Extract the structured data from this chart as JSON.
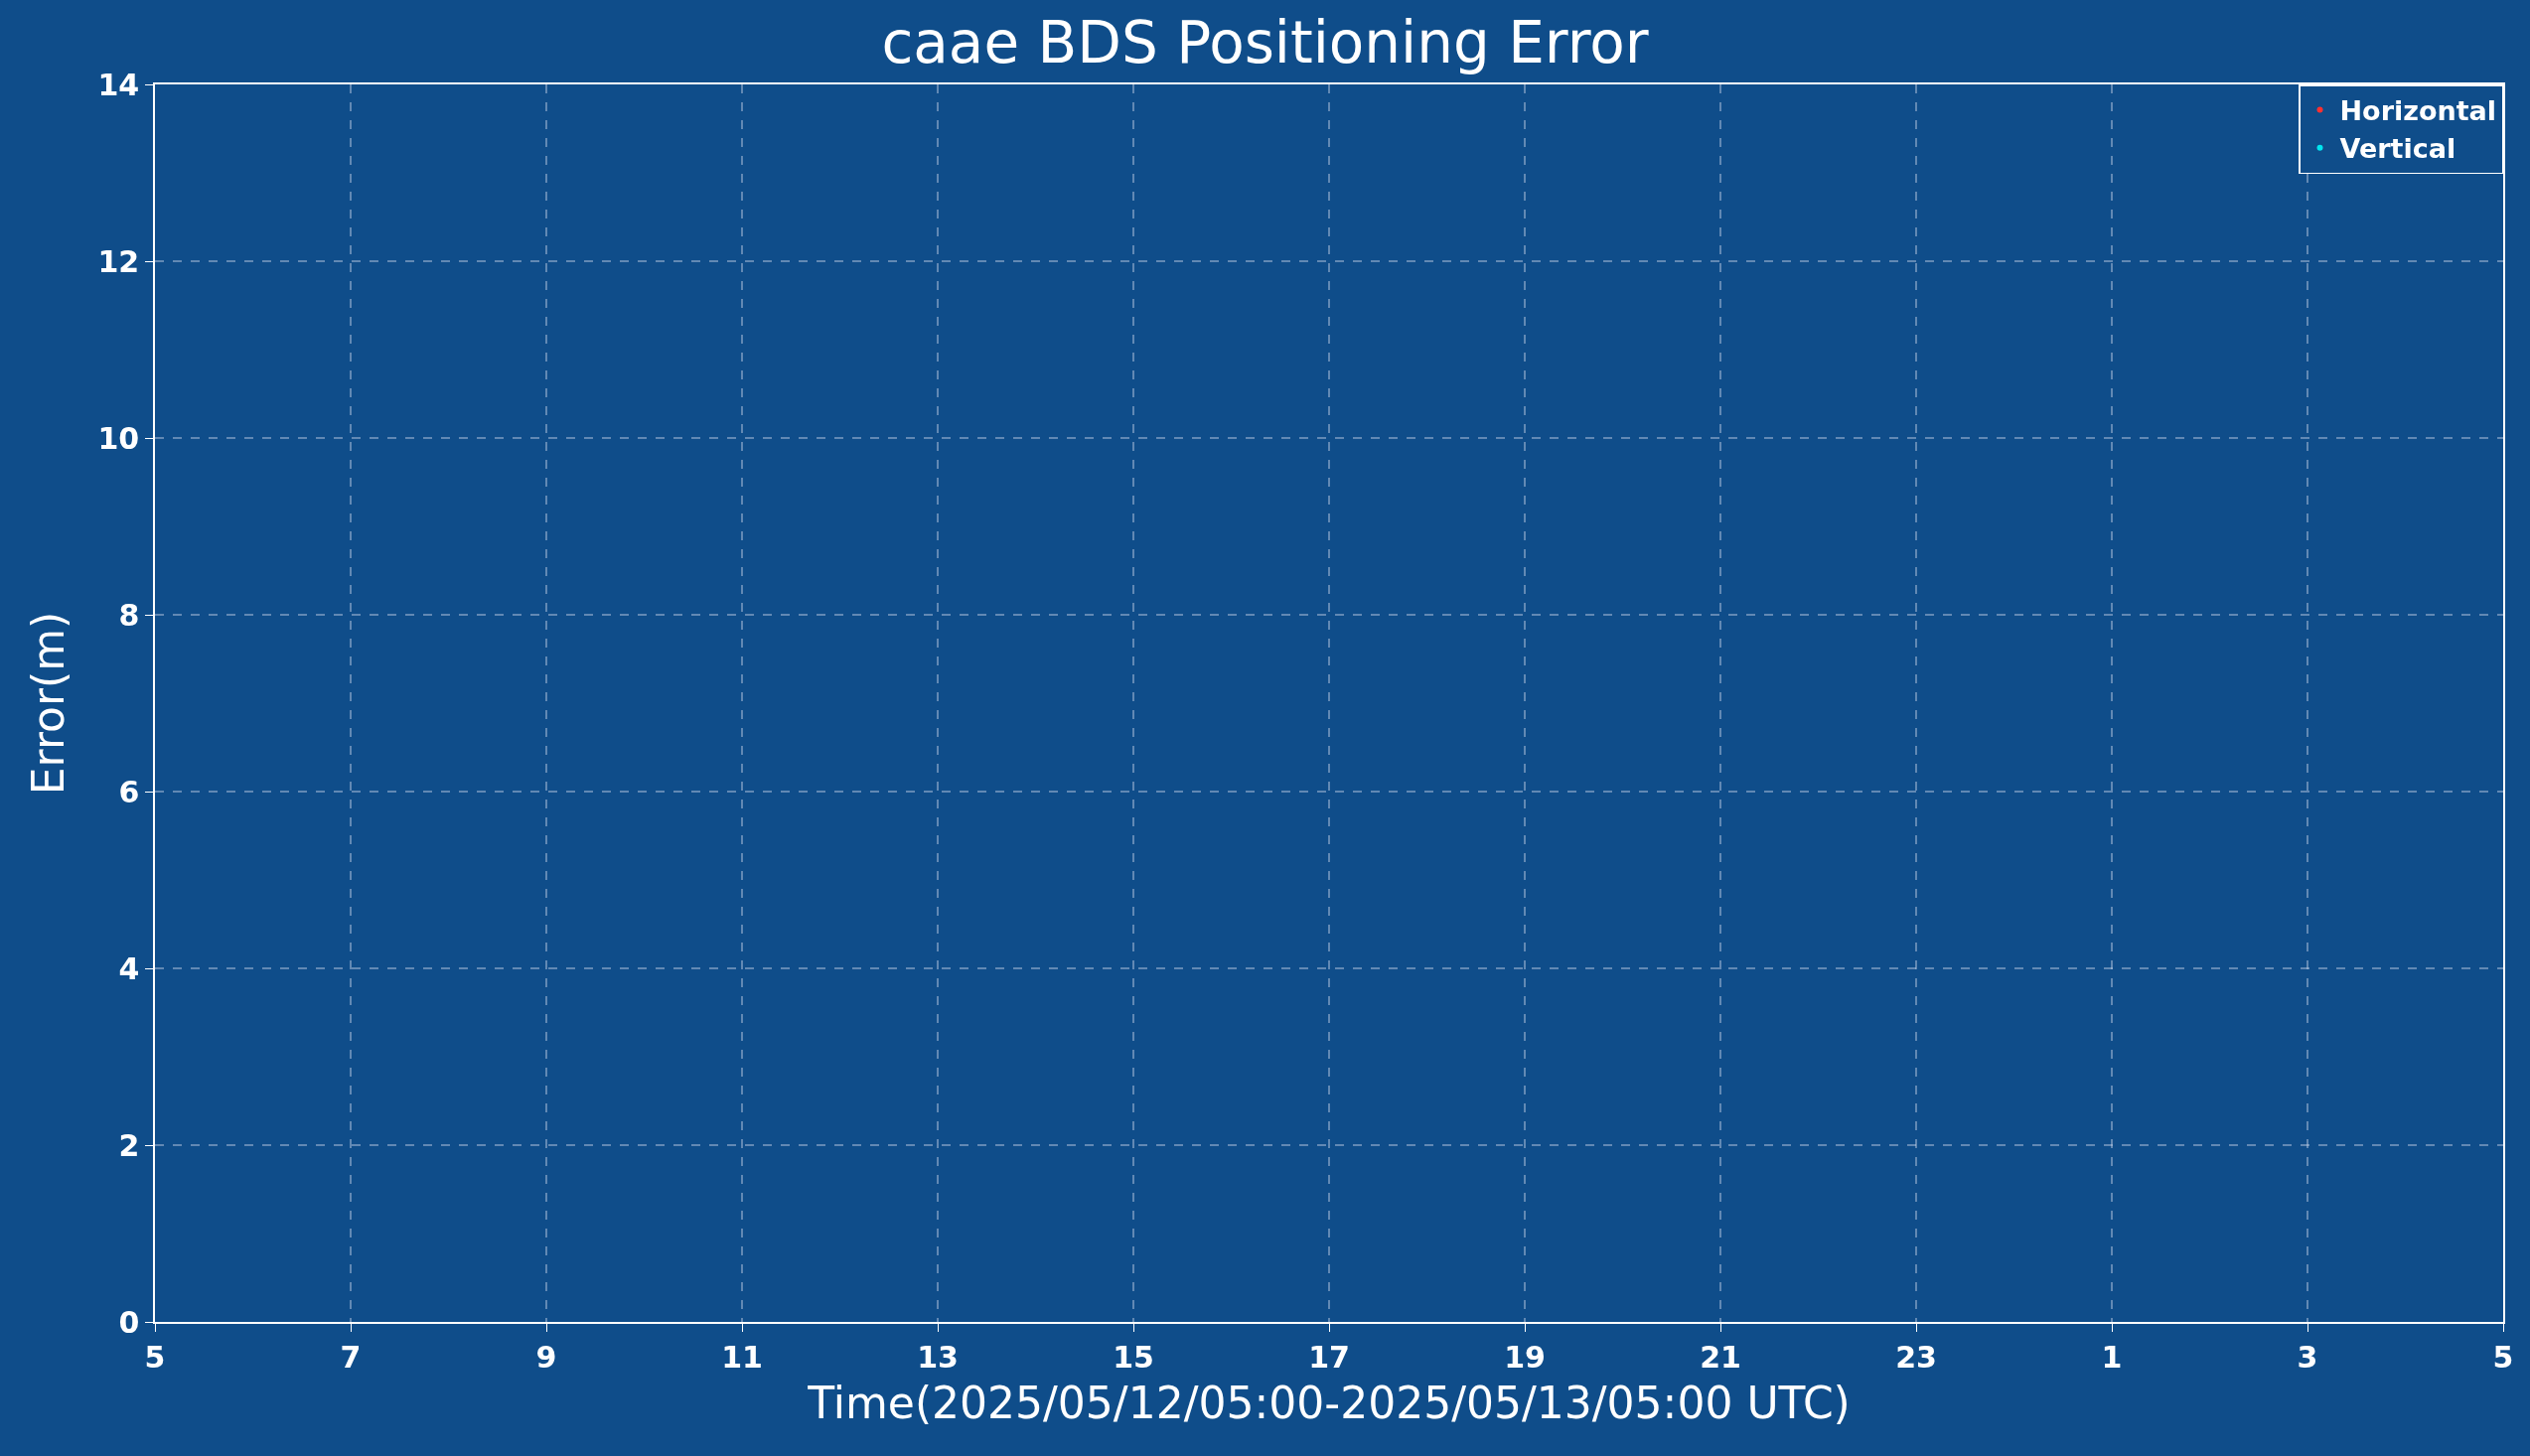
{
  "chart_data": {
    "type": "scatter",
    "title": "caae BDS Positioning Error",
    "xlabel": "Time(2025/05/12/05:00-2025/05/13/05:00 UTC)",
    "ylabel": "Error(m)",
    "categories": [
      "5",
      "7",
      "9",
      "11",
      "13",
      "15",
      "17",
      "19",
      "21",
      "23",
      "1",
      "3",
      "5"
    ],
    "series": [
      {
        "name": "Horizontal",
        "color": "#ff3030",
        "values": [
          null,
          null,
          null,
          null,
          null,
          null,
          null,
          null,
          null,
          null,
          null,
          null,
          null
        ]
      },
      {
        "name": "Vertical",
        "color": "#00e5ee",
        "values": [
          null,
          null,
          null,
          null,
          null,
          null,
          null,
          null,
          null,
          null,
          null,
          null,
          null
        ]
      }
    ],
    "ylim": [
      0,
      14
    ],
    "yticks": [
      0,
      2,
      4,
      6,
      8,
      10,
      12,
      14
    ],
    "grid": true,
    "legend": "top right",
    "marker": "circle"
  }
}
